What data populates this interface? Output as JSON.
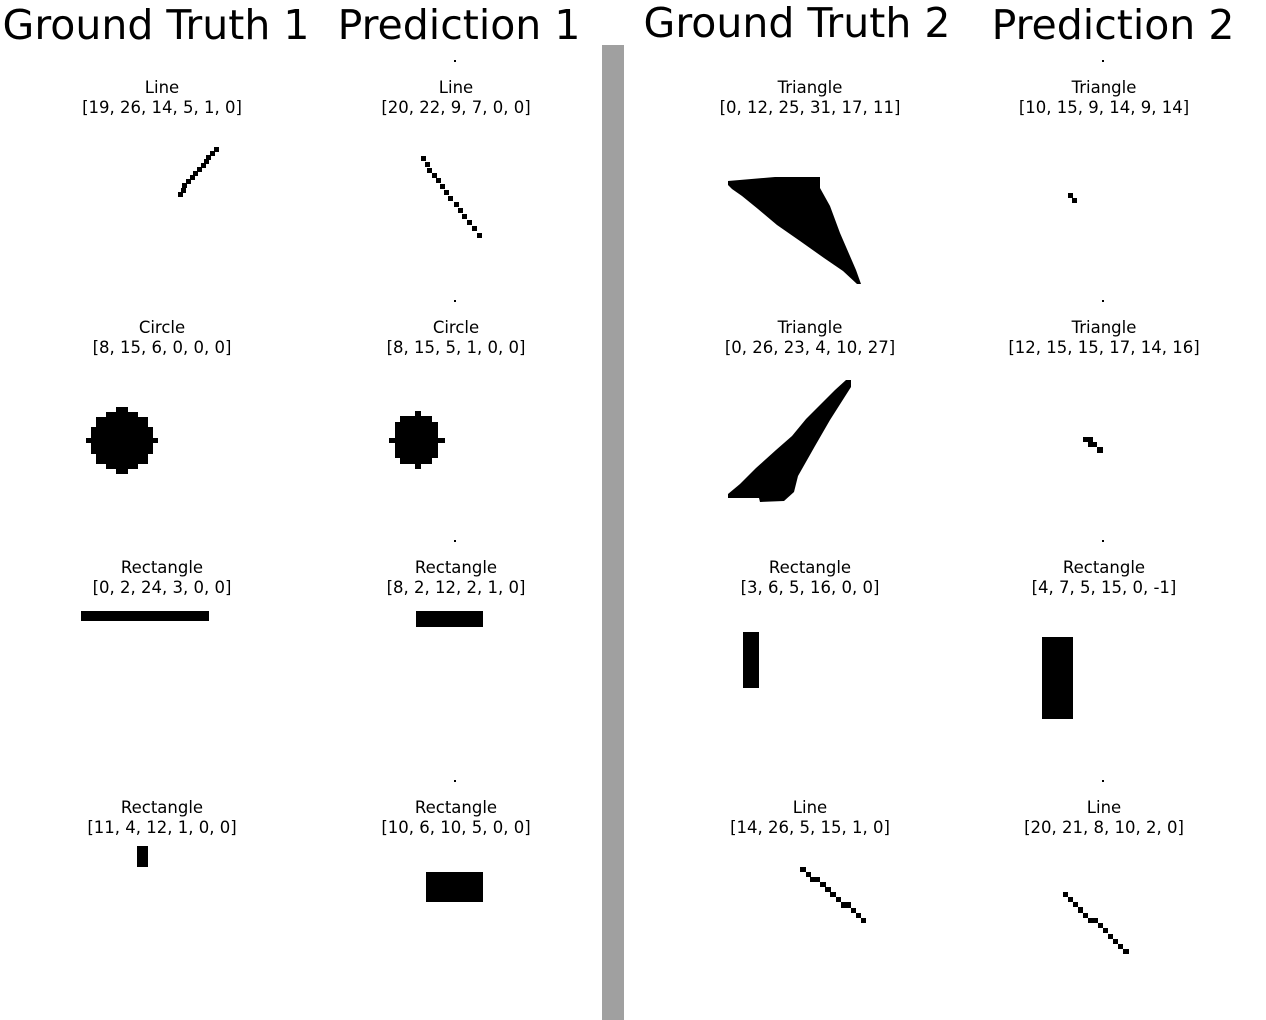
{
  "headers": {
    "gt1": "Ground Truth 1",
    "pred1": "Prediction 1",
    "gt2": "Ground Truth 2",
    "pred2": "Prediction 2"
  },
  "rows": [
    {
      "gt1": {
        "label": "Line",
        "params": "[19, 26, 14, 5, 1, 0]"
      },
      "pred1": {
        "label": "Line",
        "params": "[20, 22, 9, 7, 0, 0]"
      },
      "gt2": {
        "label": "Triangle",
        "params": "[0, 12, 25, 31, 17, 11]"
      },
      "pred2": {
        "label": "Triangle",
        "params": "[10, 15, 9, 14, 9, 14]"
      }
    },
    {
      "gt1": {
        "label": "Circle",
        "params": "[8, 15, 6, 0, 0, 0]"
      },
      "pred1": {
        "label": "Circle",
        "params": "[8, 15, 5, 1, 0, 0]"
      },
      "gt2": {
        "label": "Triangle",
        "params": "[0, 26, 23, 4, 10, 27]"
      },
      "pred2": {
        "label": "Triangle",
        "params": "[12, 15, 15, 17, 14, 16]"
      }
    },
    {
      "gt1": {
        "label": "Rectangle",
        "params": "[0, 2, 24, 3, 0, 0]"
      },
      "pred1": {
        "label": "Rectangle",
        "params": "[8, 2, 12, 2, 1, 0]"
      },
      "gt2": {
        "label": "Rectangle",
        "params": "[3, 6, 5, 16, 0, 0]"
      },
      "pred2": {
        "label": "Rectangle",
        "params": "[4, 7, 5, 15, 0, -1]"
      }
    },
    {
      "gt1": {
        "label": "Rectangle",
        "params": "[11, 4, 12, 1, 0, 0]"
      },
      "pred1": {
        "label": "Rectangle",
        "params": "[10, 6, 10, 5, 0, 0]"
      },
      "gt2": {
        "label": "Line",
        "params": "[14, 26, 5, 15, 1, 0]"
      },
      "pred2": {
        "label": "Line",
        "params": "[20, 21, 8, 10, 2, 0]"
      }
    }
  ]
}
